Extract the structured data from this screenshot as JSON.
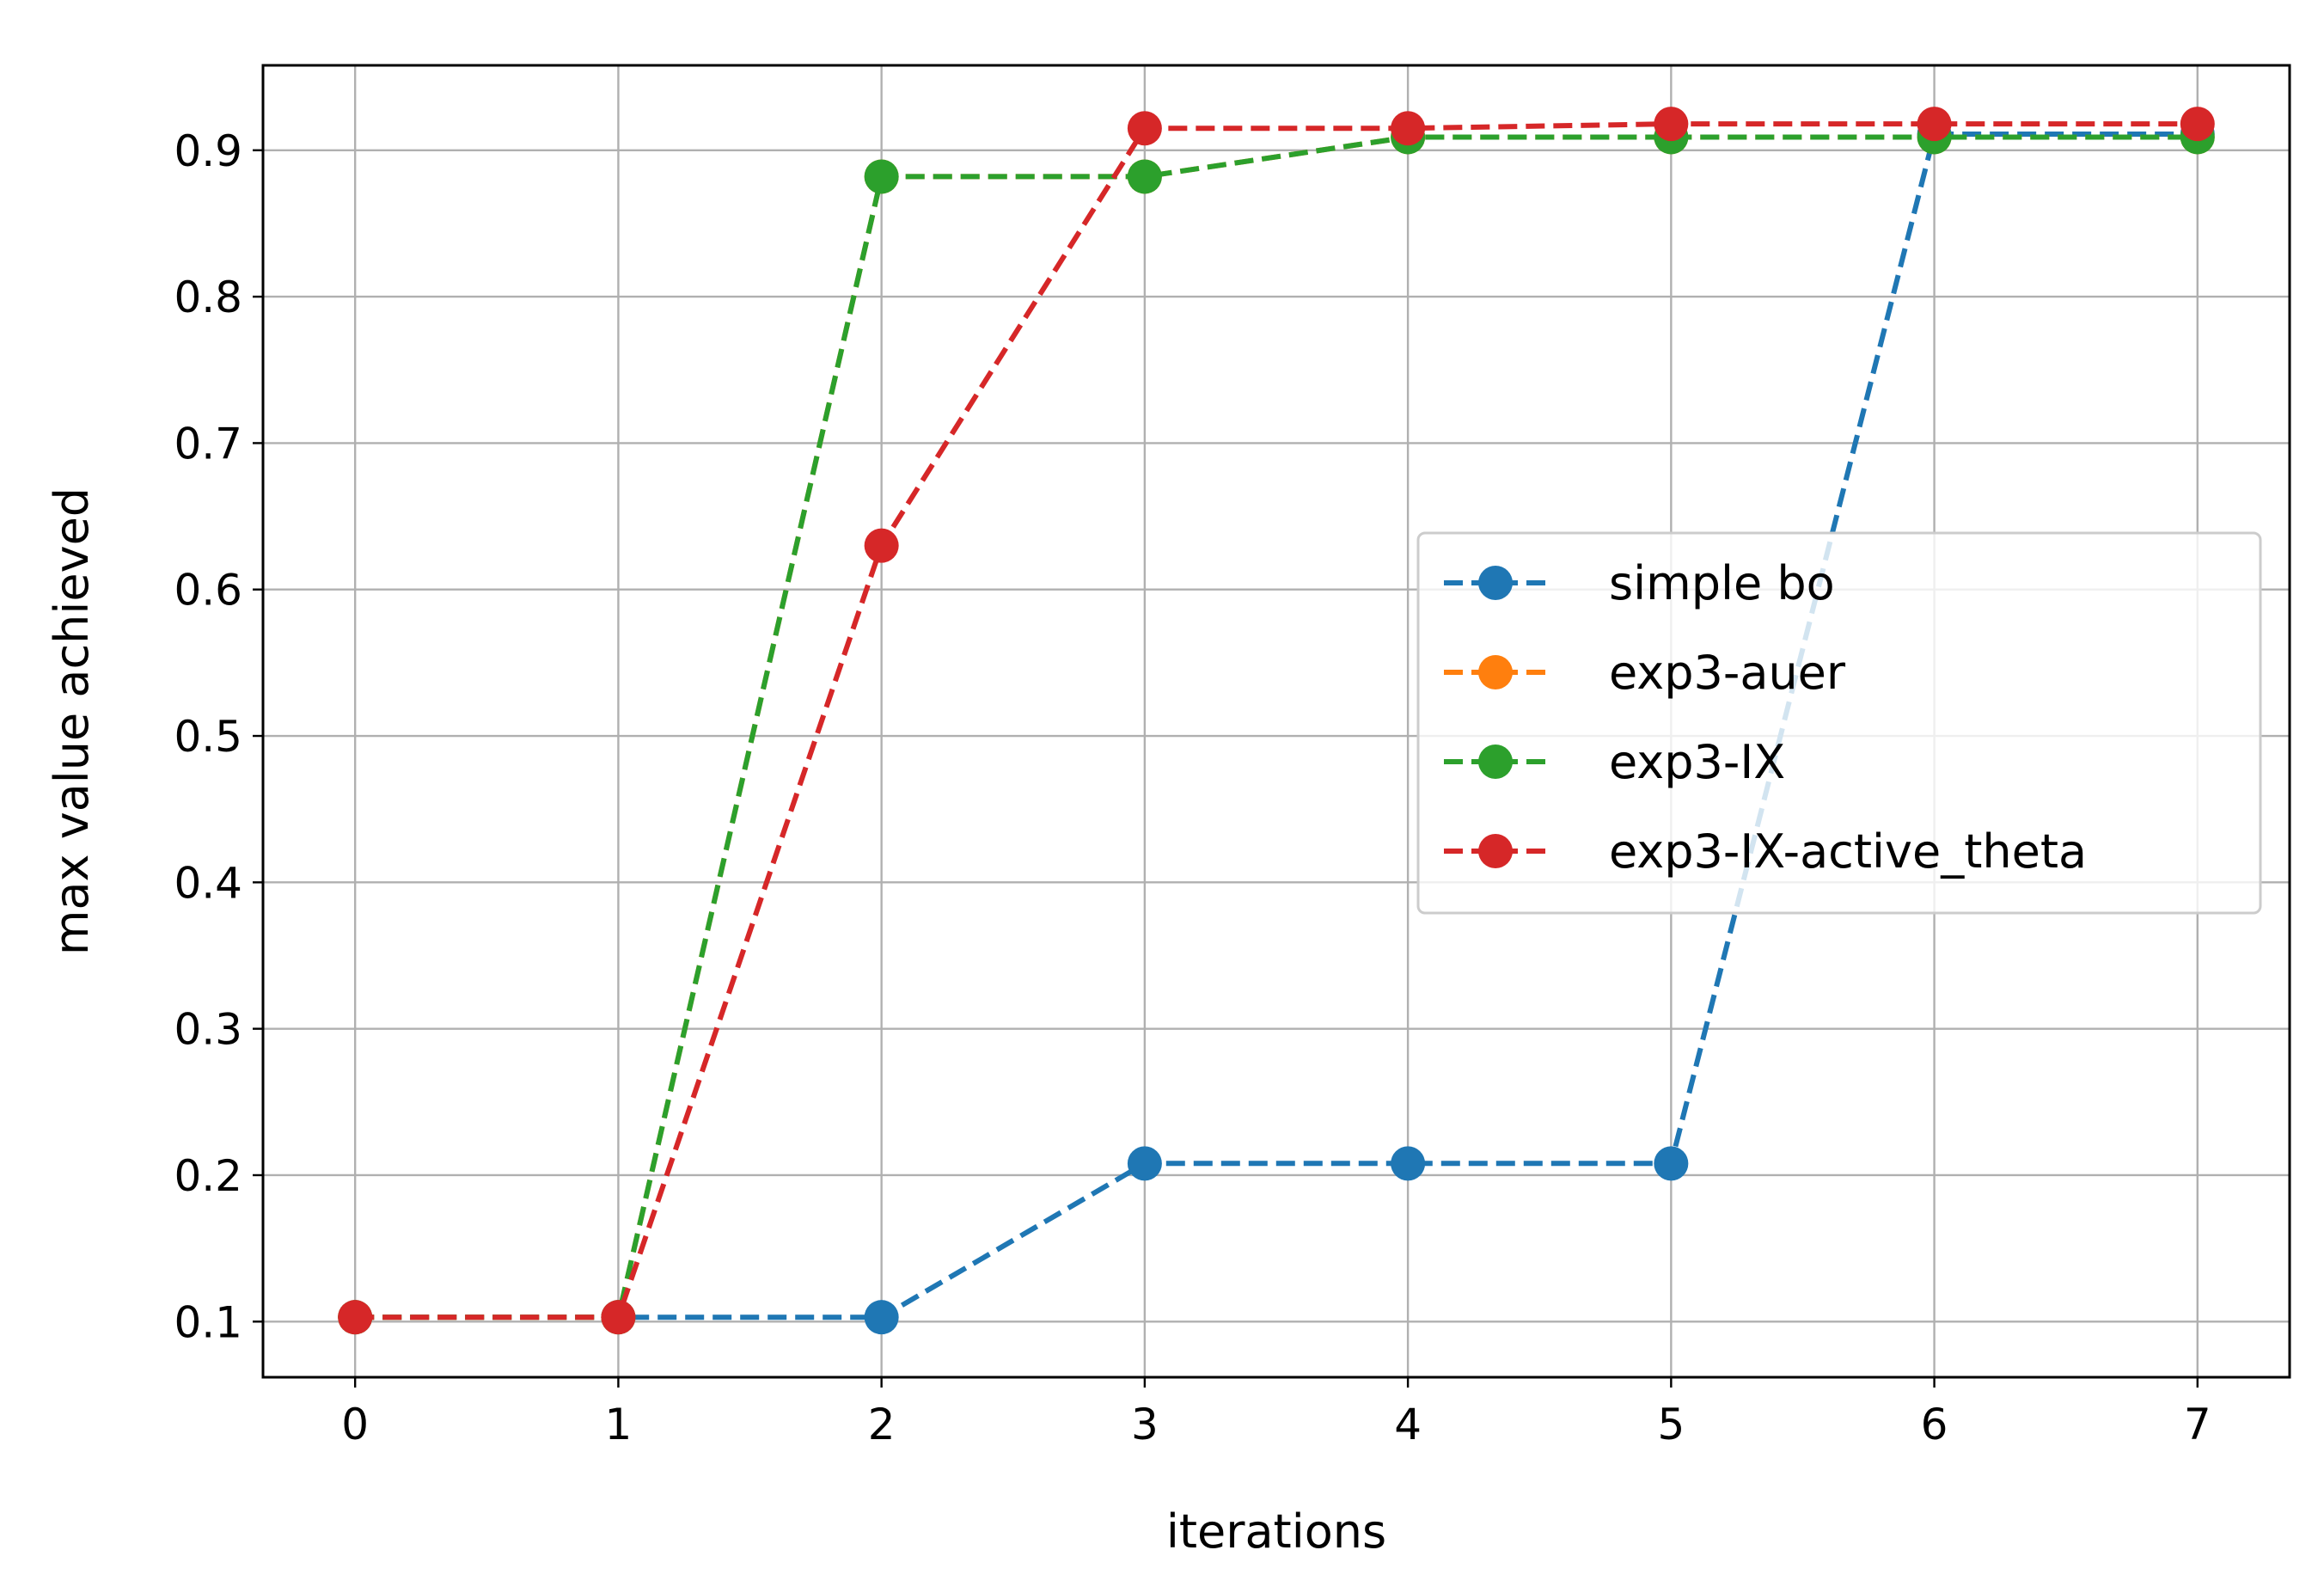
{
  "chart_data": {
    "type": "line",
    "xlabel": "iterations",
    "ylabel": "max value achieved",
    "x": [
      0,
      1,
      2,
      3,
      4,
      5,
      6,
      7
    ],
    "xlim": [
      -0.35,
      7.35
    ],
    "ylim": [
      0.062,
      0.958
    ],
    "xticks": [
      0,
      1,
      2,
      3,
      4,
      5,
      6,
      7
    ],
    "yticks": [
      0.1,
      0.2,
      0.3,
      0.4,
      0.5,
      0.6,
      0.7,
      0.8,
      0.9
    ],
    "grid": true,
    "legend_position": "center-right",
    "series": [
      {
        "name": "simple bo",
        "color": "#1f77b4",
        "line_style": "dashed",
        "marker": "circle",
        "values": [
          0.103,
          0.103,
          0.103,
          0.208,
          0.208,
          0.208,
          0.911,
          0.911
        ]
      },
      {
        "name": "exp3-auer",
        "color": "#ff7f0e",
        "line_style": "dashed",
        "marker": "circle",
        "values": [
          0.103,
          0.103,
          0.882,
          0.882,
          0.909,
          0.909,
          0.909,
          0.909
        ]
      },
      {
        "name": "exp3-IX",
        "color": "#2ca02c",
        "line_style": "dashed",
        "marker": "circle",
        "values": [
          0.103,
          0.103,
          0.882,
          0.882,
          0.909,
          0.909,
          0.909,
          0.909
        ]
      },
      {
        "name": "exp3-IX-active_theta",
        "color": "#d62728",
        "line_style": "dashed",
        "marker": "circle",
        "values": [
          0.103,
          0.103,
          0.63,
          0.915,
          0.915,
          0.918,
          0.918,
          0.918
        ]
      }
    ]
  }
}
